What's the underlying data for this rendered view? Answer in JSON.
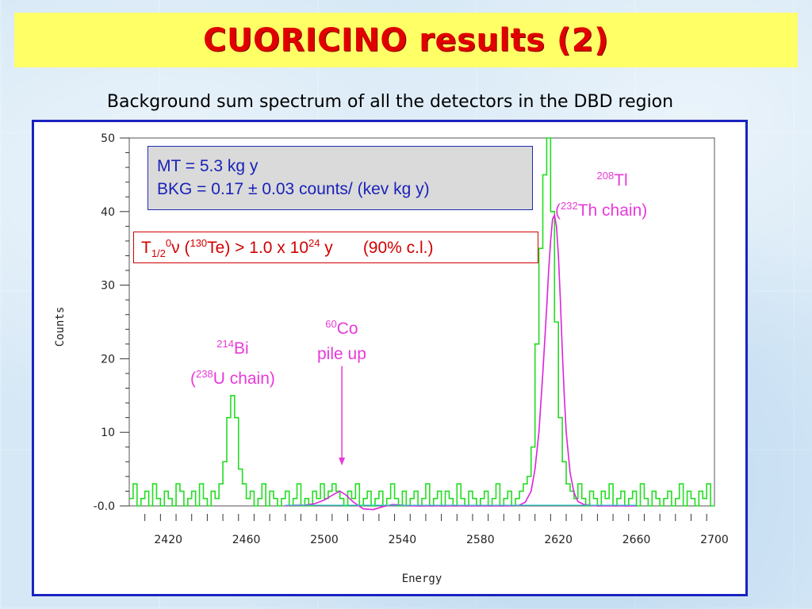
{
  "title": "CUORICINO results (2)",
  "subtitle": "Background sum spectrum of all the detectors in the DBD region",
  "colors": {
    "title_bg": "#ffff66",
    "title_text": "#e00000",
    "frame_border": "#1a22c0",
    "data_line": "#22dd22",
    "fit_line": "#dd22dd",
    "baseline_line": "#22cccc",
    "annotation_pink": "#e83ad8",
    "limit_red": "#d00000",
    "info_blue": "#1a22b8"
  },
  "info_box": {
    "line1": "MT = 5.3 kg y",
    "line2": "BKG = 0.17 ± 0.03 counts/ (kev kg y)"
  },
  "limit_box": {
    "t": "T",
    "sub": "1/2",
    "zero": "0",
    "nu": "ν",
    "open": " (",
    "te_mass": "130",
    "te_rest": "Te) > 1.0 x 10",
    "exp": "24",
    "unit": " y",
    "cl": "(90% c.l.)"
  },
  "annotations": {
    "tl": {
      "mass": "208",
      "element": "Tl",
      "chain_open": "(",
      "chain_mass": "232",
      "chain_rest": "Th chain)"
    },
    "bi": {
      "mass": "214",
      "element": "Bi",
      "chain_open": "(",
      "chain_mass": "238",
      "chain_rest": "U chain)"
    },
    "co": {
      "mass": "60",
      "element": "Co",
      "line2": "pile up"
    }
  },
  "chart_data": {
    "type": "line",
    "xlabel": "Energy",
    "ylabel": "Counts",
    "xlim": [
      2400,
      2700
    ],
    "ylim": [
      0,
      50
    ],
    "x_ticks": [
      2420,
      2460,
      2500,
      2540,
      2580,
      2620,
      2660,
      2700
    ],
    "y_ticks": [
      0,
      10,
      20,
      30,
      40,
      50
    ],
    "y_tick_labels": [
      "-0.0",
      "10",
      "20",
      "30",
      "40",
      "50"
    ],
    "bin_width": 2,
    "series": [
      {
        "role": "data",
        "style": "histogram",
        "x": [
          2400,
          2402,
          2404,
          2406,
          2408,
          2410,
          2412,
          2414,
          2416,
          2418,
          2420,
          2422,
          2424,
          2426,
          2428,
          2430,
          2432,
          2434,
          2436,
          2438,
          2440,
          2442,
          2444,
          2446,
          2448,
          2450,
          2452,
          2454,
          2456,
          2458,
          2460,
          2462,
          2464,
          2466,
          2468,
          2470,
          2472,
          2474,
          2476,
          2478,
          2480,
          2482,
          2484,
          2486,
          2488,
          2490,
          2492,
          2494,
          2496,
          2498,
          2500,
          2502,
          2504,
          2506,
          2508,
          2510,
          2512,
          2514,
          2516,
          2518,
          2520,
          2522,
          2524,
          2526,
          2528,
          2530,
          2532,
          2534,
          2536,
          2538,
          2540,
          2542,
          2544,
          2546,
          2548,
          2550,
          2552,
          2554,
          2556,
          2558,
          2560,
          2562,
          2564,
          2566,
          2568,
          2570,
          2572,
          2574,
          2576,
          2578,
          2580,
          2582,
          2584,
          2586,
          2588,
          2590,
          2592,
          2594,
          2596,
          2598,
          2600,
          2602,
          2604,
          2606,
          2608,
          2610,
          2612,
          2614,
          2616,
          2618,
          2620,
          2622,
          2624,
          2626,
          2628,
          2630,
          2632,
          2634,
          2636,
          2638,
          2640,
          2642,
          2644,
          2646,
          2648,
          2650,
          2652,
          2654,
          2656,
          2658,
          2660,
          2662,
          2664,
          2666,
          2668,
          2670,
          2672,
          2674,
          2676,
          2678,
          2680,
          2682,
          2684,
          2686,
          2688,
          2690,
          2692,
          2694,
          2696,
          2698
        ],
        "y": [
          1,
          3,
          0,
          1,
          2,
          0,
          3,
          1,
          0,
          2,
          1,
          0,
          3,
          2,
          0,
          1,
          2,
          0,
          3,
          1,
          0,
          2,
          1,
          3,
          6,
          12,
          15,
          12,
          5,
          3,
          1,
          2,
          0,
          1,
          3,
          0,
          2,
          1,
          0,
          1,
          2,
          0,
          1,
          3,
          0,
          1,
          0,
          2,
          1,
          3,
          1,
          2,
          3,
          2,
          1,
          0,
          2,
          1,
          3,
          0,
          1,
          2,
          0,
          1,
          2,
          0,
          1,
          3,
          1,
          0,
          2,
          0,
          1,
          2,
          0,
          1,
          3,
          0,
          1,
          2,
          0,
          2,
          1,
          0,
          3,
          1,
          0,
          2,
          1,
          0,
          1,
          2,
          0,
          1,
          3,
          0,
          1,
          2,
          0,
          1,
          2,
          3,
          4,
          8,
          22,
          35,
          45,
          50,
          40,
          25,
          12,
          6,
          3,
          2,
          1,
          3,
          1,
          0,
          2,
          1,
          0,
          2,
          1,
          3,
          0,
          1,
          2,
          0,
          1,
          2,
          0,
          3,
          1,
          0,
          2,
          1,
          0,
          1,
          2,
          0,
          1,
          3,
          0,
          2,
          1,
          0,
          2,
          1,
          3,
          0
        ]
      },
      {
        "role": "fit",
        "style": "line",
        "x": [
          2480,
          2485,
          2490,
          2495,
          2500,
          2505,
          2508,
          2511,
          2515,
          2520,
          2525,
          2530,
          2535,
          2540,
          2545,
          2550,
          2555,
          2560,
          2565,
          2570,
          2575,
          2580,
          2585,
          2590,
          2595,
          2600,
          2603,
          2606,
          2608,
          2610,
          2612,
          2614,
          2615,
          2616,
          2617,
          2618,
          2619,
          2620,
          2621,
          2622,
          2623,
          2624,
          2626,
          2628,
          2630,
          2633,
          2636,
          2640,
          2645,
          2650,
          2660
        ],
        "y": [
          0,
          0.1,
          0.1,
          0.3,
          0.8,
          1.6,
          2.0,
          1.5,
          0.5,
          -0.4,
          -0.5,
          -0.1,
          0.2,
          0.1,
          0,
          0,
          0,
          0,
          0,
          0,
          0,
          0,
          0,
          0,
          0,
          0.1,
          0.5,
          2,
          5,
          10,
          18,
          27,
          32,
          36,
          39,
          39.5,
          38,
          34,
          28,
          21,
          15,
          10,
          4.5,
          1.8,
          0.6,
          0.2,
          0.1,
          0,
          0,
          0,
          0
        ]
      },
      {
        "role": "baseline",
        "style": "line",
        "x": [
          2480,
          2660
        ],
        "y": [
          0.1,
          0.1
        ]
      }
    ],
    "arrow": {
      "x": 2509,
      "y_from": 19,
      "y_to": 5.5
    }
  }
}
